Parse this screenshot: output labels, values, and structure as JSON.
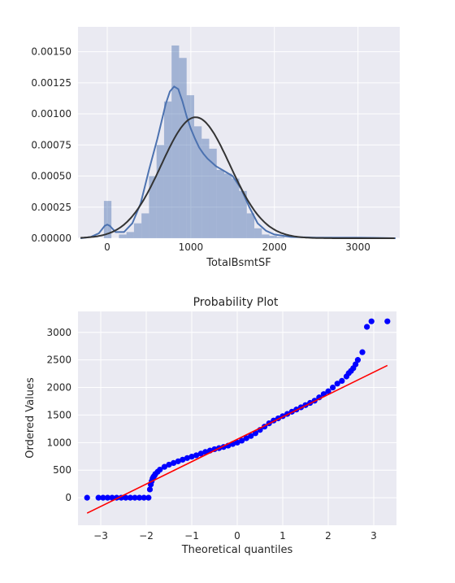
{
  "chart_data": [
    {
      "type": "bar",
      "subtype": "histogram-with-kde-and-normal-fit",
      "title": "",
      "xlabel": "TotalBsmtSF",
      "ylabel": "",
      "xlim": [
        -350,
        3500
      ],
      "ylim": [
        0,
        0.0017
      ],
      "xticks": [
        0,
        1000,
        2000,
        3000
      ],
      "xtick_labels": [
        "0",
        "1000",
        "2000",
        "3000"
      ],
      "yticks": [
        0,
        0.00025,
        0.0005,
        0.00075,
        0.001,
        0.00125,
        0.0015
      ],
      "ytick_labels": [
        "0.00000",
        "0.00025",
        "0.00050",
        "0.00075",
        "0.00100",
        "0.00125",
        "0.00150"
      ],
      "grid": true,
      "colors": {
        "bars": "#4c72b0",
        "kde": "#4c72b0",
        "fit": "#333333",
        "background": "#eaeaf2"
      },
      "bins": [
        {
          "x0": -40,
          "x1": 50,
          "v": 0.0003
        },
        {
          "x0": 50,
          "x1": 140,
          "v": 0.0
        },
        {
          "x0": 140,
          "x1": 230,
          "v": 3e-05
        },
        {
          "x0": 230,
          "x1": 320,
          "v": 5e-05
        },
        {
          "x0": 320,
          "x1": 410,
          "v": 0.00012
        },
        {
          "x0": 410,
          "x1": 500,
          "v": 0.0002
        },
        {
          "x0": 500,
          "x1": 590,
          "v": 0.0005
        },
        {
          "x0": 590,
          "x1": 680,
          "v": 0.00075
        },
        {
          "x0": 680,
          "x1": 770,
          "v": 0.0011
        },
        {
          "x0": 770,
          "x1": 860,
          "v": 0.00155
        },
        {
          "x0": 860,
          "x1": 950,
          "v": 0.00145
        },
        {
          "x0": 950,
          "x1": 1040,
          "v": 0.00115
        },
        {
          "x0": 1040,
          "x1": 1130,
          "v": 0.0009
        },
        {
          "x0": 1130,
          "x1": 1220,
          "v": 0.0008
        },
        {
          "x0": 1220,
          "x1": 1310,
          "v": 0.00072
        },
        {
          "x0": 1310,
          "x1": 1400,
          "v": 0.00055
        },
        {
          "x0": 1400,
          "x1": 1490,
          "v": 0.00052
        },
        {
          "x0": 1490,
          "x1": 1580,
          "v": 0.00048
        },
        {
          "x0": 1580,
          "x1": 1670,
          "v": 0.00038
        },
        {
          "x0": 1670,
          "x1": 1760,
          "v": 0.0002
        },
        {
          "x0": 1760,
          "x1": 1850,
          "v": 8e-05
        },
        {
          "x0": 1850,
          "x1": 1940,
          "v": 3e-05
        },
        {
          "x0": 1940,
          "x1": 2030,
          "v": 2e-05
        },
        {
          "x0": 2030,
          "x1": 2120,
          "v": 1e-05
        }
      ],
      "kde": {
        "x": [
          -320,
          -200,
          -100,
          -30,
          0,
          30,
          100,
          200,
          300,
          400,
          500,
          600,
          700,
          750,
          800,
          850,
          900,
          950,
          1000,
          1050,
          1100,
          1150,
          1200,
          1300,
          1400,
          1500,
          1600,
          1700,
          1800,
          1900,
          2000,
          2200,
          2500,
          3000,
          3200,
          3450
        ],
        "y": [
          0.0,
          1e-05,
          4e-05,
          0.0001,
          0.00011,
          0.0001,
          5e-05,
          5e-05,
          0.00012,
          0.00028,
          0.00055,
          0.0008,
          0.00108,
          0.00118,
          0.00122,
          0.0012,
          0.0011,
          0.00098,
          0.00088,
          0.0008,
          0.00073,
          0.00068,
          0.00064,
          0.00058,
          0.00054,
          0.0005,
          0.0004,
          0.00025,
          0.00012,
          6e-05,
          3e-05,
          1e-05,
          5e-06,
          5e-06,
          3e-06,
          0.0
        ]
      },
      "normal_fit": {
        "mean": 1057,
        "sd": 410
      }
    },
    {
      "type": "scatter",
      "subtype": "probability-plot",
      "title": "Probability Plot",
      "xlabel": "Theoretical quantiles",
      "ylabel": "Ordered Values",
      "xlim": [
        -3.5,
        3.5
      ],
      "ylim": [
        -500,
        3380
      ],
      "xticks": [
        -3,
        -2,
        -1,
        0,
        1,
        2,
        3
      ],
      "xtick_labels": [
        "−3",
        "−2",
        "−1",
        "0",
        "1",
        "2",
        "3"
      ],
      "yticks": [
        0,
        500,
        1000,
        1500,
        2000,
        2500,
        3000
      ],
      "ytick_labels": [
        "0",
        "500",
        "1000",
        "1500",
        "2000",
        "2500",
        "3000"
      ],
      "grid": true,
      "colors": {
        "points": "#0000ff",
        "fit_line": "#ff0000",
        "background": "#eaeaf2"
      },
      "fit_line": {
        "x": [
          -3.3,
          3.3
        ],
        "y": [
          -280,
          2400
        ]
      },
      "points": {
        "x": [
          -3.3,
          -3.05,
          -2.95,
          -2.85,
          -2.75,
          -2.65,
          -2.55,
          -2.45,
          -2.35,
          -2.25,
          -2.15,
          -2.05,
          -1.95,
          -1.92,
          -1.9,
          -1.88,
          -1.86,
          -1.84,
          -1.82,
          -1.8,
          -1.75,
          -1.7,
          -1.6,
          -1.5,
          -1.4,
          -1.3,
          -1.2,
          -1.1,
          -1.0,
          -0.9,
          -0.8,
          -0.7,
          -0.6,
          -0.5,
          -0.4,
          -0.3,
          -0.2,
          -0.1,
          0.0,
          0.1,
          0.2,
          0.3,
          0.4,
          0.5,
          0.6,
          0.7,
          0.8,
          0.9,
          1.0,
          1.1,
          1.2,
          1.3,
          1.4,
          1.5,
          1.6,
          1.7,
          1.8,
          1.9,
          2.0,
          2.1,
          2.2,
          2.3,
          2.4,
          2.45,
          2.5,
          2.55,
          2.6,
          2.65,
          2.75,
          2.85,
          2.95,
          3.3
        ],
        "y": [
          0,
          0,
          0,
          0,
          0,
          0,
          0,
          0,
          0,
          0,
          0,
          0,
          0,
          150,
          240,
          300,
          350,
          380,
          400,
          430,
          470,
          510,
          560,
          600,
          630,
          660,
          690,
          720,
          745,
          770,
          800,
          830,
          855,
          880,
          900,
          920,
          945,
          975,
          1000,
          1035,
          1080,
          1120,
          1170,
          1230,
          1290,
          1350,
          1400,
          1440,
          1480,
          1520,
          1560,
          1600,
          1640,
          1680,
          1720,
          1760,
          1820,
          1880,
          1930,
          2000,
          2070,
          2120,
          2200,
          2260,
          2300,
          2350,
          2420,
          2500,
          2640,
          3100,
          3200,
          3200
        ]
      }
    }
  ]
}
